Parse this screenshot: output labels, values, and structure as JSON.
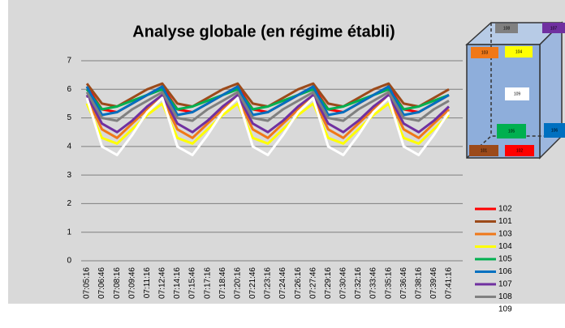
{
  "chart_data": {
    "type": "line",
    "title": "Analyse globale (en régime établi)",
    "categories": [
      "07:05:16",
      "07:06:46",
      "07:08:16",
      "07:09:46",
      "07:11:16",
      "07:12:46",
      "07:14:16",
      "07:15:46",
      "07:17:16",
      "07:18:46",
      "07:20:16",
      "07:21:46",
      "07:23:16",
      "07:24:46",
      "07:26:16",
      "07:27:46",
      "07:29:16",
      "07:30:46",
      "07:32:16",
      "07:33:46",
      "07:35:16",
      "07:36:46",
      "07:38:16",
      "07:39:46",
      "07:41:16"
    ],
    "series": [
      {
        "name": "102",
        "color": "#ff0000",
        "values": [
          6.1,
          5.3,
          5.2,
          5.5,
          5.8,
          6.1,
          5.3,
          5.2,
          5.5,
          5.8,
          6.1,
          5.3,
          5.2,
          5.5,
          5.8,
          6.1,
          5.3,
          5.2,
          5.5,
          5.8,
          6.1,
          5.3,
          5.2,
          5.5,
          5.8
        ]
      },
      {
        "name": "101",
        "color": "#9c4a1a",
        "values": [
          6.2,
          5.5,
          5.4,
          5.7,
          6.0,
          6.2,
          5.5,
          5.4,
          5.7,
          6.0,
          6.2,
          5.5,
          5.4,
          5.7,
          6.0,
          6.2,
          5.5,
          5.4,
          5.7,
          6.0,
          6.2,
          5.5,
          5.4,
          5.7,
          6.0
        ]
      },
      {
        "name": "103",
        "color": "#f07818",
        "values": [
          5.7,
          4.6,
          4.3,
          4.8,
          5.3,
          5.7,
          4.6,
          4.3,
          4.8,
          5.3,
          5.7,
          4.6,
          4.3,
          4.8,
          5.3,
          5.7,
          4.6,
          4.3,
          4.8,
          5.3,
          5.7,
          4.6,
          4.3,
          4.8,
          5.3
        ]
      },
      {
        "name": "104",
        "color": "#ffff00",
        "values": [
          5.5,
          4.3,
          4.1,
          4.6,
          5.1,
          5.5,
          4.3,
          4.1,
          4.6,
          5.1,
          5.5,
          4.3,
          4.1,
          4.6,
          5.1,
          5.5,
          4.3,
          4.1,
          4.6,
          5.1,
          5.5,
          4.3,
          4.1,
          4.6,
          5.1
        ]
      },
      {
        "name": "105",
        "color": "#00b050",
        "values": [
          6.0,
          5.3,
          5.4,
          5.6,
          5.8,
          6.0,
          5.3,
          5.4,
          5.6,
          5.8,
          6.0,
          5.3,
          5.4,
          5.6,
          5.8,
          6.0,
          5.3,
          5.4,
          5.6,
          5.8,
          6.0,
          5.3,
          5.4,
          5.6,
          5.8
        ]
      },
      {
        "name": "106",
        "color": "#0070c0",
        "values": [
          6.1,
          5.1,
          5.2,
          5.5,
          5.8,
          6.1,
          5.1,
          5.2,
          5.5,
          5.8,
          6.1,
          5.1,
          5.2,
          5.5,
          5.8,
          6.1,
          5.1,
          5.2,
          5.5,
          5.8,
          6.1,
          5.1,
          5.2,
          5.5,
          5.8
        ]
      },
      {
        "name": "107",
        "color": "#7030a0",
        "values": [
          5.8,
          4.8,
          4.5,
          4.9,
          5.4,
          5.8,
          4.8,
          4.5,
          4.9,
          5.4,
          5.8,
          4.8,
          4.5,
          4.9,
          5.4,
          5.8,
          4.8,
          4.5,
          4.9,
          5.4,
          5.8,
          4.8,
          4.5,
          4.9,
          5.4
        ]
      },
      {
        "name": "108",
        "color": "#808080",
        "values": [
          5.9,
          5.0,
          4.9,
          5.3,
          5.6,
          5.9,
          5.0,
          4.9,
          5.3,
          5.6,
          5.9,
          5.0,
          4.9,
          5.3,
          5.6,
          5.9,
          5.0,
          4.9,
          5.3,
          5.6,
          5.9,
          5.0,
          4.9,
          5.3,
          5.6
        ]
      },
      {
        "name": "109",
        "color": "#ffffff",
        "values": [
          5.7,
          4.0,
          3.7,
          4.4,
          5.2,
          5.7,
          4.0,
          3.7,
          4.4,
          5.2,
          5.7,
          4.0,
          3.7,
          4.4,
          5.2,
          5.7,
          4.0,
          3.7,
          4.4,
          5.2,
          5.7,
          4.0,
          3.7,
          4.4,
          5.2
        ]
      }
    ],
    "ylim": [
      0,
      7
    ],
    "yticks": [
      0,
      1,
      2,
      3,
      4,
      5,
      6,
      7
    ],
    "grid": true,
    "annotations": [
      "108",
      "107",
      "103",
      "104",
      "109",
      "105",
      "106",
      "101",
      "102"
    ]
  }
}
